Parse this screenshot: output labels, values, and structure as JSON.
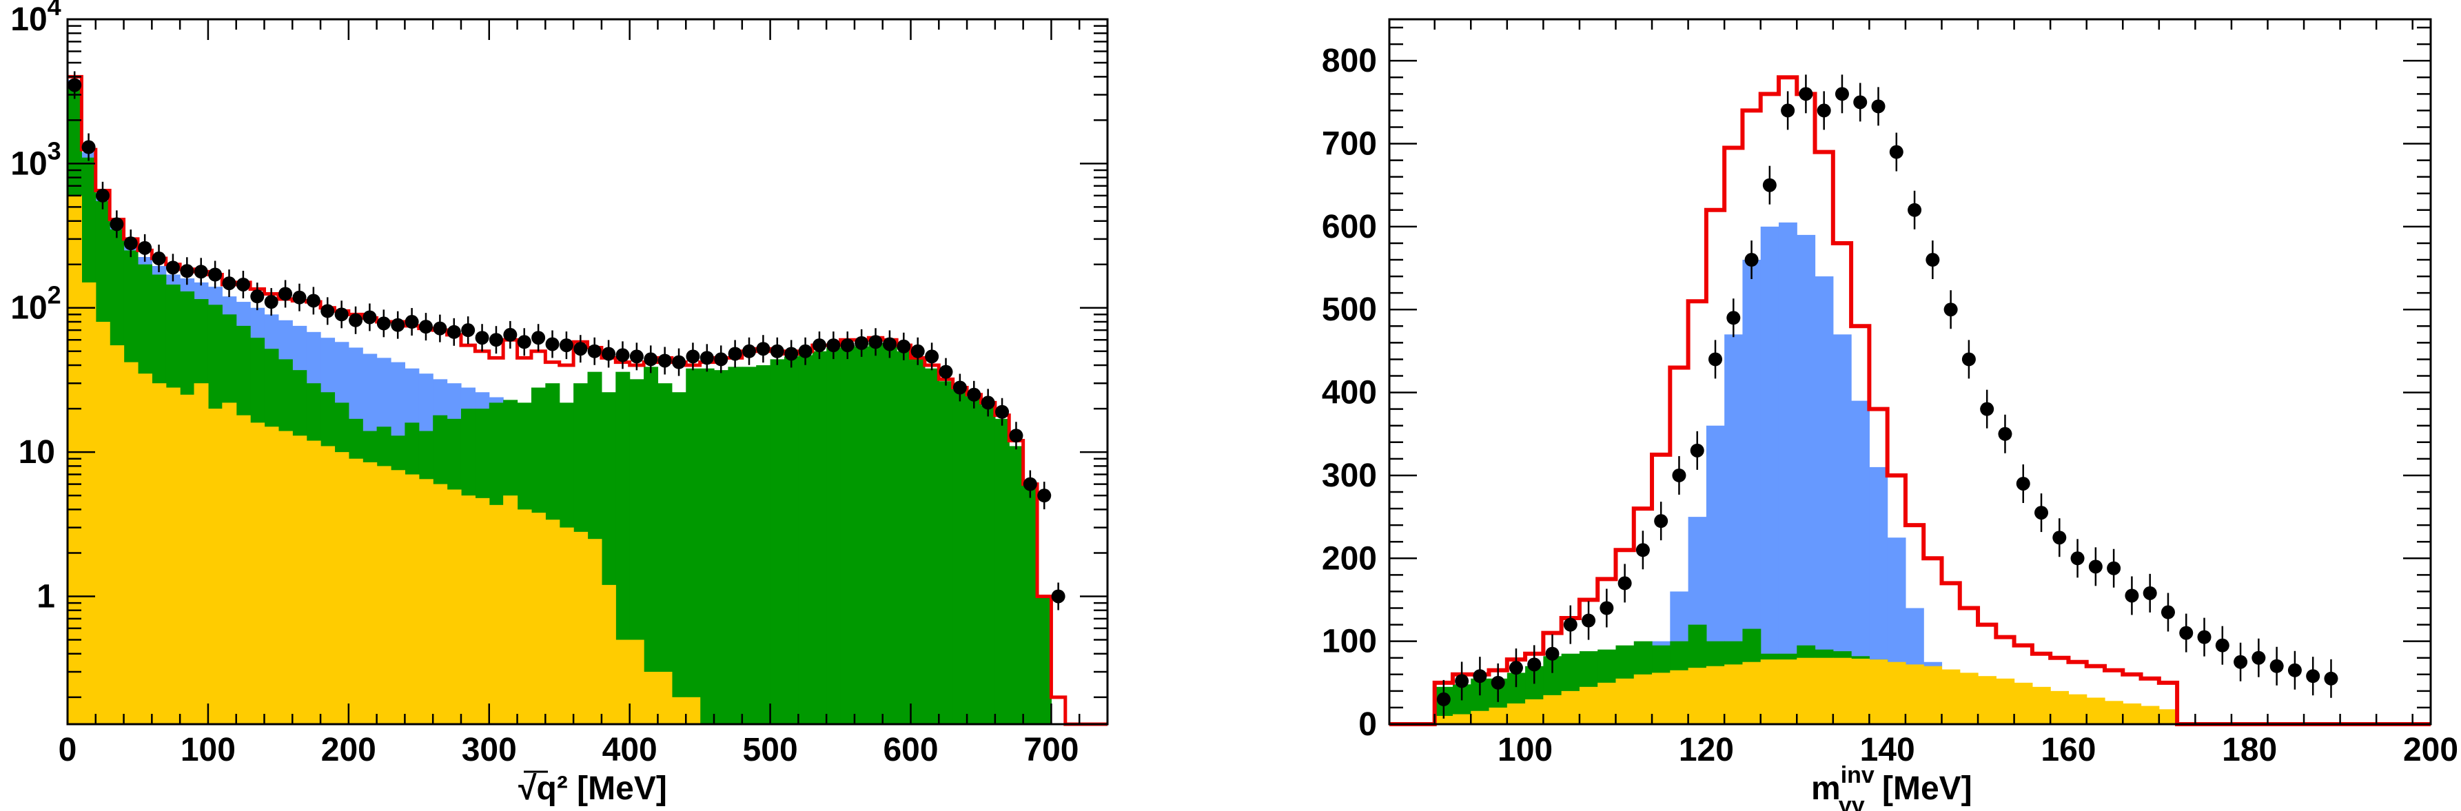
{
  "colors": {
    "yellow": "#ffcc00",
    "blue": "#6699ff",
    "green": "#009900",
    "red": "#ee0000",
    "points": "#000000"
  },
  "chart_data": [
    {
      "type": "histogram",
      "xlabel": "√q²  [MeV]",
      "ylabel": "",
      "ylog": true,
      "xlim": [
        0,
        740
      ],
      "ylim": [
        0.13,
        10000
      ],
      "xticks": [
        "0",
        "100",
        "200",
        "300",
        "400",
        "500",
        "600",
        "700"
      ],
      "yticks": [
        {
          "v": 1,
          "label": "1"
        },
        {
          "v": 10,
          "label": "10"
        },
        {
          "v": 100,
          "label": "10",
          "exp": "2"
        },
        {
          "v": 1000,
          "label": "10",
          "exp": "3"
        },
        {
          "v": 10000,
          "label": "10",
          "exp": "4"
        }
      ],
      "bin_edges_start": 0,
      "bin_width": 10,
      "series": [
        {
          "key": "total_mc",
          "values": [
            4000,
            1250,
            650,
            410,
            300,
            250,
            220,
            200,
            185,
            178,
            170,
            145,
            150,
            135,
            125,
            115,
            112,
            110,
            100,
            95,
            90,
            85,
            80,
            80,
            75,
            72,
            70,
            65,
            55,
            50,
            45,
            60,
            45,
            50,
            42,
            40,
            58,
            53,
            45,
            42,
            40,
            42,
            45,
            42,
            40,
            42,
            45,
            45,
            50,
            52,
            50,
            48,
            50,
            55,
            55,
            60,
            60,
            62,
            60,
            55,
            45,
            40,
            32,
            28,
            25,
            22,
            18,
            12,
            6,
            1,
            0.2
          ]
        },
        {
          "key": "blue_stack",
          "values": [
            3800,
            1200,
            600,
            380,
            270,
            225,
            195,
            170,
            160,
            150,
            140,
            120,
            110,
            100,
            90,
            82,
            75,
            68,
            62,
            58,
            53,
            48,
            45,
            42,
            38,
            35,
            32,
            30,
            28,
            26,
            24,
            22,
            20,
            19,
            18,
            17,
            16,
            15,
            14,
            13,
            12,
            11,
            10,
            9,
            8,
            7,
            6,
            5,
            4,
            3,
            2,
            1.5,
            1.2,
            1,
            0.8,
            0.5,
            0.3,
            0.2,
            0.1,
            0.1,
            0.1,
            0.1,
            0.1,
            0.1,
            0.1,
            0.1,
            0.1,
            0.1,
            0.1,
            0.1,
            0.1
          ]
        },
        {
          "key": "green_stack",
          "values": [
            3600,
            1100,
            550,
            350,
            250,
            200,
            170,
            145,
            130,
            115,
            105,
            90,
            75,
            62,
            52,
            44,
            37,
            30,
            26,
            22,
            17,
            14,
            15,
            13,
            16,
            14,
            18,
            17,
            20,
            20,
            22,
            23,
            22,
            28,
            30,
            22,
            30,
            36,
            26,
            36,
            32,
            39,
            30,
            26,
            38,
            38,
            37,
            39,
            39,
            40,
            44,
            46,
            47,
            50,
            53,
            55,
            54,
            57,
            56,
            50,
            44,
            38,
            31,
            27,
            24,
            21,
            17,
            11,
            6,
            1,
            0.13
          ]
        },
        {
          "key": "yellow",
          "values": [
            600,
            150,
            80,
            55,
            42,
            35,
            30,
            28,
            25,
            30,
            20,
            22,
            18,
            16,
            15,
            14,
            13,
            12,
            11,
            10,
            9,
            8.5,
            8,
            7.5,
            7,
            6.5,
            6,
            5.5,
            5,
            4.8,
            4.3,
            5,
            4,
            3.8,
            3.4,
            3,
            2.8,
            2.5,
            1.2,
            0.5,
            0.5,
            0.3,
            0.3,
            0.2,
            0.2
          ]
        }
      ],
      "data_points": {
        "x": [
          5,
          15,
          25,
          35,
          45,
          55,
          65,
          75,
          85,
          95,
          105,
          115,
          125,
          135,
          145,
          155,
          165,
          175,
          185,
          195,
          205,
          215,
          225,
          235,
          245,
          255,
          265,
          275,
          285,
          295,
          305,
          315,
          325,
          335,
          345,
          355,
          365,
          375,
          385,
          395,
          405,
          415,
          425,
          435,
          445,
          455,
          465,
          475,
          485,
          495,
          505,
          515,
          525,
          535,
          545,
          555,
          565,
          575,
          585,
          595,
          605,
          615,
          625,
          635,
          645,
          655,
          665,
          675,
          685,
          695,
          705
        ],
        "y": [
          3500,
          1300,
          600,
          380,
          280,
          260,
          220,
          190,
          180,
          178,
          170,
          148,
          145,
          120,
          110,
          125,
          118,
          112,
          95,
          90,
          82,
          86,
          78,
          76,
          80,
          74,
          72,
          68,
          70,
          62,
          60,
          65,
          58,
          62,
          56,
          55,
          52,
          50,
          48,
          47,
          46,
          44,
          43,
          42,
          46,
          45,
          44,
          48,
          50,
          52,
          50,
          48,
          50,
          55,
          55,
          55,
          57,
          58,
          56,
          54,
          50,
          46,
          36,
          28,
          25,
          22,
          19,
          13,
          6,
          5,
          1
        ]
      }
    },
    {
      "type": "histogram",
      "xlabel": "m",
      "xlabel_sub": "γγ",
      "xlabel_sup": "inv",
      "xlabel_unit": " [MeV]",
      "ylabel": "",
      "xlim": [
        85,
        200
      ],
      "ylim": [
        0,
        850
      ],
      "xticks": [
        "100",
        "120",
        "140",
        "160",
        "180",
        "200"
      ],
      "yticks": [
        "0",
        "100",
        "200",
        "300",
        "400",
        "500",
        "600",
        "700",
        "800"
      ],
      "bin_edges_start": 90,
      "bin_width": 2,
      "series": [
        {
          "key": "total_mc",
          "values": [
            50,
            60,
            60,
            65,
            78,
            85,
            110,
            128,
            150,
            175,
            210,
            260,
            325,
            430,
            510,
            620,
            695,
            740,
            760,
            780,
            760,
            690,
            580,
            480,
            380,
            300,
            240,
            200,
            170,
            140,
            120,
            105,
            95,
            85,
            80,
            75,
            70,
            65,
            60,
            55,
            50
          ]
        },
        {
          "key": "blue_stack",
          "values": [
            0,
            0,
            0,
            0,
            0,
            0,
            0,
            0,
            0,
            0,
            0,
            0,
            100,
            160,
            250,
            360,
            470,
            560,
            600,
            605,
            590,
            540,
            470,
            390,
            310,
            225,
            140,
            75,
            0,
            0,
            0,
            0,
            0,
            0,
            0,
            0,
            0,
            0,
            0,
            0,
            0
          ]
        },
        {
          "key": "green_stack",
          "values": [
            45,
            48,
            55,
            55,
            62,
            70,
            82,
            85,
            88,
            90,
            95,
            100,
            95,
            100,
            120,
            100,
            100,
            115,
            85,
            85,
            95,
            90,
            88,
            82,
            78,
            70,
            65,
            60,
            55,
            50,
            45,
            40,
            35,
            30,
            25,
            20,
            15,
            10,
            5,
            0,
            0
          ]
        },
        {
          "key": "yellow",
          "values": [
            10,
            12,
            16,
            20,
            25,
            30,
            35,
            40,
            45,
            50,
            55,
            60,
            62,
            65,
            68,
            70,
            72,
            75,
            78,
            78,
            80,
            80,
            80,
            79,
            78,
            75,
            72,
            70,
            66,
            62,
            58,
            55,
            50,
            45,
            40,
            36,
            32,
            28,
            25,
            22,
            18
          ]
        }
      ],
      "data_points": {
        "x": [
          91,
          93,
          95,
          97,
          99,
          101,
          103,
          105,
          107,
          109,
          111,
          113,
          115,
          117,
          119,
          121,
          123,
          125,
          127,
          129,
          131,
          133,
          135,
          137,
          139,
          141,
          143,
          145,
          147,
          149,
          151,
          153,
          155,
          157,
          159,
          161,
          163,
          165,
          167,
          169,
          171,
          173,
          175,
          177,
          179,
          181,
          183,
          185,
          187,
          189
        ],
        "y": [
          30,
          52,
          58,
          50,
          68,
          72,
          85,
          120,
          125,
          140,
          170,
          210,
          245,
          300,
          330,
          440,
          490,
          560,
          650,
          740,
          760,
          740,
          760,
          750,
          745,
          690,
          620,
          560,
          500,
          440,
          380,
          350,
          290,
          255,
          225,
          200,
          190,
          188,
          155,
          158,
          135,
          110,
          105,
          95,
          75,
          80,
          70,
          65,
          58,
          55
        ]
      }
    }
  ]
}
